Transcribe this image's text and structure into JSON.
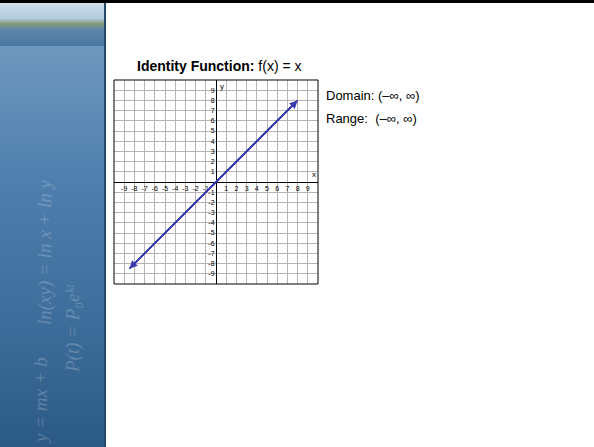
{
  "slide": {
    "title_bold": "Identity Function:",
    "title_rest": "f(x) = x",
    "notes": [
      "Domain: (–∞, ∞)",
      "Range:  (–∞, ∞)"
    ],
    "sidebar_texts": [
      "ln(xy) = ln x + ln y",
      "P(t) = P₀eᵏᵗ",
      "y = mx + b"
    ]
  },
  "chart_data": {
    "type": "line",
    "x_label": "x",
    "y_label": "y",
    "x": [
      -8.5,
      8
    ],
    "values": [
      -8.5,
      8
    ],
    "color": "#3b3bb0",
    "line_style": "solid",
    "marker": "arrow",
    "xlim": [
      -10,
      10
    ],
    "ylim": [
      -10,
      10
    ],
    "xticks": [
      -9,
      -8,
      -7,
      -6,
      -5,
      -4,
      -3,
      -2,
      -1,
      1,
      2,
      3,
      4,
      5,
      6,
      7,
      8,
      9
    ],
    "yticks": [
      -9,
      -8,
      -7,
      -6,
      -5,
      -4,
      -3,
      -2,
      -1,
      1,
      2,
      3,
      4,
      5,
      6,
      7,
      8,
      9
    ],
    "grid": true
  }
}
